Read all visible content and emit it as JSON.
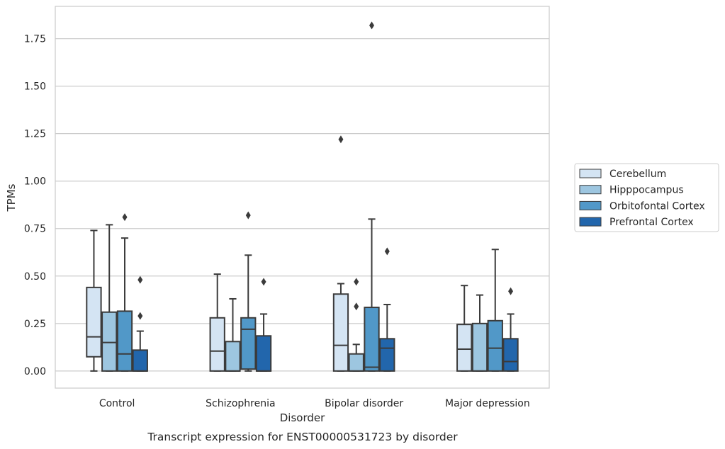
{
  "caption": "Transcript expression for ENST00000531723 by disorder",
  "chart_data": {
    "type": "box",
    "xlabel": "Disorder",
    "ylabel": "TPMs",
    "ylim": [
      -0.09,
      1.92
    ],
    "yticks": [
      0.0,
      0.25,
      0.5,
      0.75,
      1.0,
      1.25,
      1.5,
      1.75
    ],
    "ytick_labels": [
      "0.00",
      "0.25",
      "0.50",
      "0.75",
      "1.00",
      "1.25",
      "1.50",
      "1.75"
    ],
    "grid": true,
    "legend_position": "right",
    "categories": [
      "Control",
      "Schizophrenia",
      "Bipolar disorder",
      "Major depression"
    ],
    "series": [
      {
        "name": "Cerebellum",
        "color": "#d4e4f3",
        "boxes": [
          {
            "whislo": 0.0,
            "q1": 0.075,
            "med": 0.18,
            "q3": 0.44,
            "whishi": 0.74,
            "fliers": []
          },
          {
            "whislo": 0.0,
            "q1": 0.0,
            "med": 0.105,
            "q3": 0.28,
            "whishi": 0.51,
            "fliers": []
          },
          {
            "whislo": 0.0,
            "q1": 0.0,
            "med": 0.135,
            "q3": 0.405,
            "whishi": 0.46,
            "fliers": [
              1.22
            ]
          },
          {
            "whislo": 0.0,
            "q1": 0.0,
            "med": 0.115,
            "q3": 0.245,
            "whishi": 0.45,
            "fliers": []
          }
        ]
      },
      {
        "name": "Hipppocampus",
        "color": "#9dc6e0",
        "boxes": [
          {
            "whislo": 0.0,
            "q1": 0.0,
            "med": 0.15,
            "q3": 0.31,
            "whishi": 0.77,
            "fliers": []
          },
          {
            "whislo": 0.0,
            "q1": 0.0,
            "med": 0.0,
            "q3": 0.155,
            "whishi": 0.38,
            "fliers": []
          },
          {
            "whislo": 0.0,
            "q1": 0.0,
            "med": 0.0,
            "q3": 0.09,
            "whishi": 0.14,
            "fliers": [
              0.34,
              0.47
            ]
          },
          {
            "whislo": 0.0,
            "q1": 0.0,
            "med": 0.0,
            "q3": 0.25,
            "whishi": 0.4,
            "fliers": []
          }
        ]
      },
      {
        "name": "Orbitofontal Cortex",
        "color": "#5198c8",
        "boxes": [
          {
            "whislo": 0.0,
            "q1": 0.0,
            "med": 0.09,
            "q3": 0.315,
            "whishi": 0.7,
            "fliers": [
              0.81
            ]
          },
          {
            "whislo": 0.0,
            "q1": 0.01,
            "med": 0.22,
            "q3": 0.28,
            "whishi": 0.61,
            "fliers": [
              0.82
            ]
          },
          {
            "whislo": 0.0,
            "q1": 0.0,
            "med": 0.02,
            "q3": 0.335,
            "whishi": 0.8,
            "fliers": [
              1.82
            ]
          },
          {
            "whislo": 0.0,
            "q1": 0.0,
            "med": 0.12,
            "q3": 0.265,
            "whishi": 0.64,
            "fliers": []
          }
        ]
      },
      {
        "name": "Prefrontal Cortex",
        "color": "#2266ac",
        "boxes": [
          {
            "whislo": 0.0,
            "q1": 0.0,
            "med": 0.0,
            "q3": 0.11,
            "whishi": 0.21,
            "fliers": [
              0.29,
              0.48
            ]
          },
          {
            "whislo": 0.0,
            "q1": 0.0,
            "med": 0.0,
            "q3": 0.185,
            "whishi": 0.3,
            "fliers": [
              0.47
            ]
          },
          {
            "whislo": 0.0,
            "q1": 0.0,
            "med": 0.12,
            "q3": 0.17,
            "whishi": 0.35,
            "fliers": [
              0.63
            ]
          },
          {
            "whislo": 0.0,
            "q1": 0.0,
            "med": 0.05,
            "q3": 0.17,
            "whishi": 0.3,
            "fliers": [
              0.42
            ]
          }
        ]
      }
    ]
  }
}
